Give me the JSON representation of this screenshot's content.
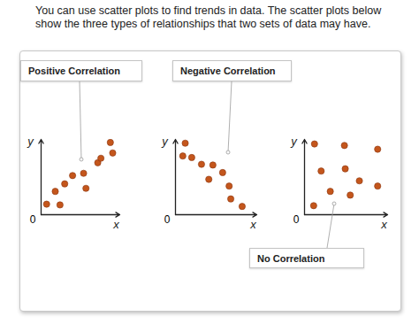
{
  "header": {
    "text": "You can use scatter plots to find trends in data. The scatter plots below show the three types of relationships that two sets of data may have."
  },
  "chart_data": [
    {
      "type": "scatter",
      "title": "Positive Correlation",
      "xlabel": "x",
      "ylabel": "y",
      "x": [
        0.7,
        1.8,
        2.4,
        3.0,
        4.0,
        5.4,
        5.7,
        7.2,
        7.6,
        8.8,
        9.1
      ],
      "y": [
        1.4,
        3.1,
        1.3,
        4.1,
        5.2,
        5.5,
        3.5,
        6.9,
        7.5,
        9.6,
        8.2
      ],
      "xlim": [
        0,
        10
      ],
      "ylim": [
        0,
        10
      ],
      "yticks": [
        0
      ],
      "tick_labels": "y",
      "color": "#c4561c"
    },
    {
      "type": "scatter",
      "title": "Negative Correlation",
      "xlabel": "x",
      "ylabel": "y",
      "x": [
        1.2,
        0.9,
        2.0,
        3.2,
        4.6,
        4.1,
        5.8,
        6.6,
        6.8,
        8.2
      ],
      "y": [
        9.5,
        7.8,
        7.6,
        6.7,
        6.6,
        4.7,
        5.6,
        3.8,
        2.1,
        1.1
      ],
      "xlim": [
        0,
        10
      ],
      "ylim": [
        0,
        10
      ],
      "yticks": [
        0
      ],
      "tick_labels": "y",
      "color": "#c4561c"
    },
    {
      "type": "scatter",
      "title": "No Correlation",
      "xlabel": "x",
      "ylabel": "y",
      "x": [
        1.2,
        4.8,
        8.8,
        2.0,
        4.9,
        6.6,
        3.1,
        5.5,
        8.8,
        1.1
      ],
      "y": [
        9.4,
        9.2,
        8.7,
        5.8,
        6.1,
        4.5,
        3.1,
        2.6,
        3.8,
        1.2
      ],
      "xlim": [
        0,
        10
      ],
      "ylim": [
        0,
        10
      ],
      "yticks": [
        0
      ],
      "tick_labels": "y",
      "color": "#c4561c"
    }
  ]
}
